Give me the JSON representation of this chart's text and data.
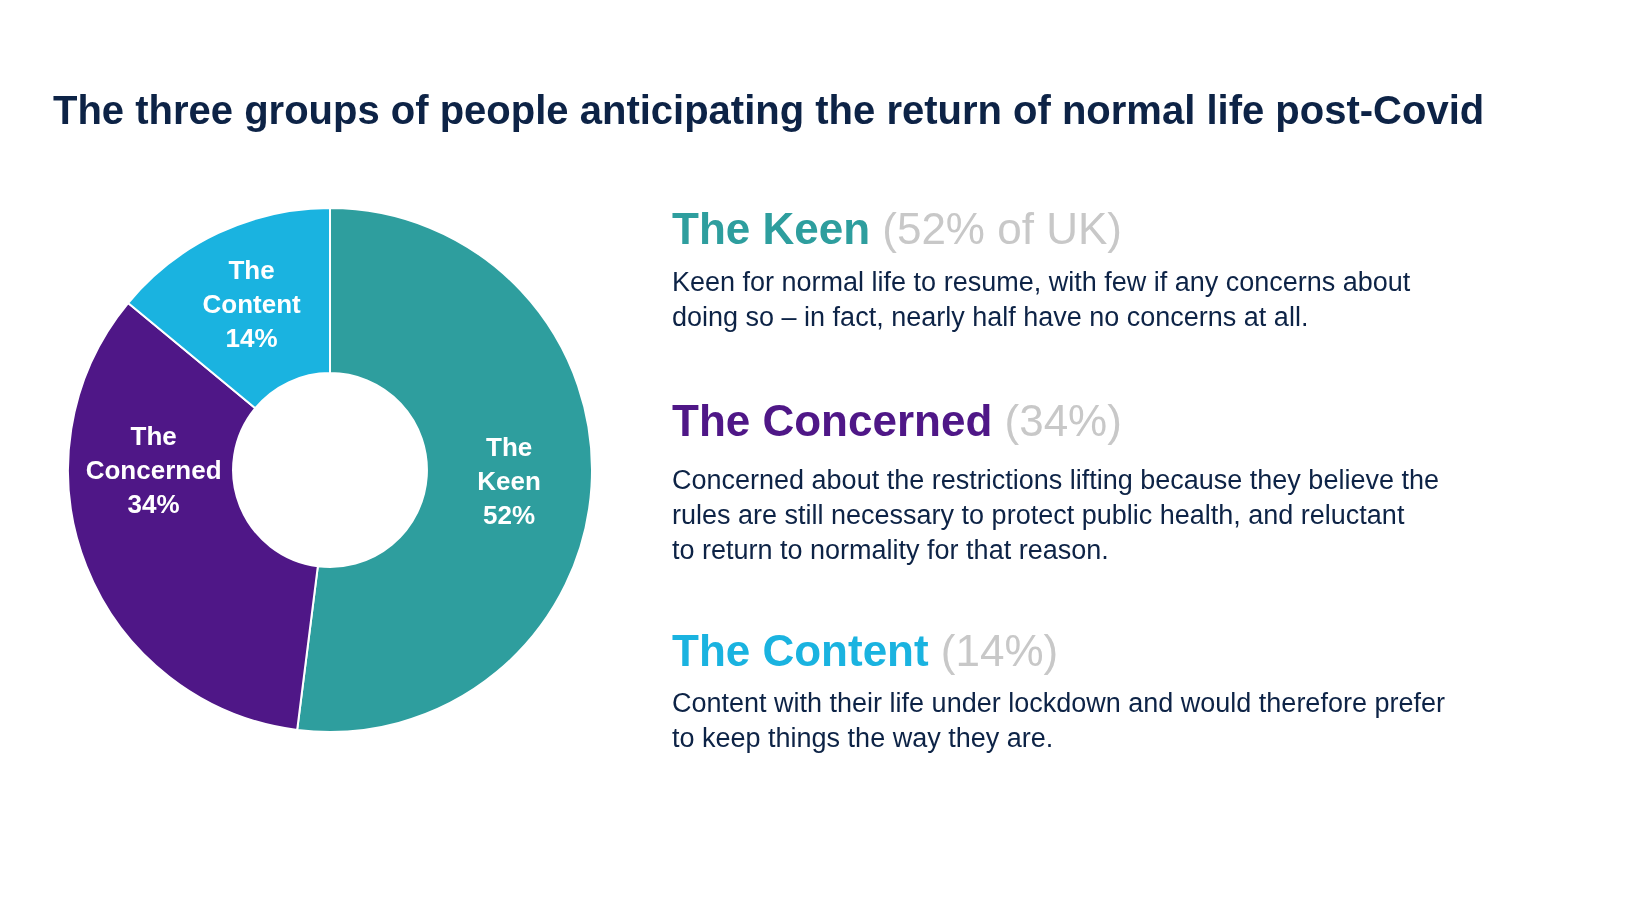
{
  "chart_data": {
    "type": "donut",
    "title": "The three groups of people anticipating the return of normal life post-Covid",
    "categories": [
      "The Keen",
      "The Concerned",
      "The Content"
    ],
    "values": [
      52,
      34,
      14
    ],
    "value_labels": [
      "52%",
      "34%",
      "14%"
    ],
    "colors": [
      "#2e9e9e",
      "#4f1787",
      "#1ab3e0"
    ],
    "legend": false,
    "annotations": [
      "The Keen (52% of UK)",
      "Keen for normal life to resume, with few if any concerns about doing so – in fact, nearly half have no concerns at all.",
      "The Concerned (34%)",
      "Concerned about the restrictions lifting because they believe the rules are still necessary to protect public health, and reluctant to return to normality for that reason.",
      "The Content (14%)",
      "Content with their life under lockdown and would therefore prefer to keep things the way they are."
    ]
  }
}
